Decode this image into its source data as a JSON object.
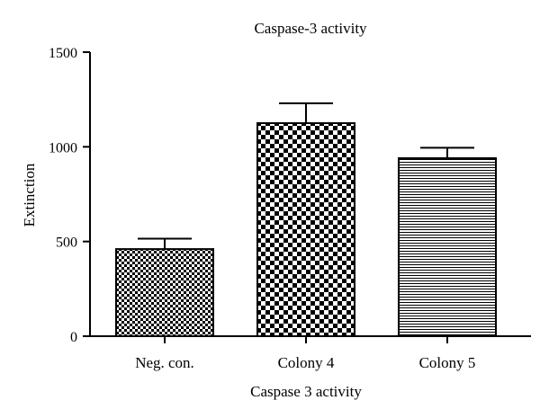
{
  "chart_data": {
    "type": "bar",
    "title": "Caspase-3 activity",
    "xlabel": "Caspase 3 activity",
    "ylabel": "Extinction",
    "ylim": [
      0,
      1500
    ],
    "yticks": [
      0,
      500,
      1000,
      1500
    ],
    "categories": [
      "Neg. con.",
      "Colony 4",
      "Colony 5"
    ],
    "values": [
      460,
      1125,
      940
    ],
    "error_upper": [
      515,
      1230,
      995
    ],
    "patterns": [
      "fine-checker",
      "coarse-checker",
      "horizontal-lines"
    ],
    "grid": false,
    "legend": "none"
  }
}
